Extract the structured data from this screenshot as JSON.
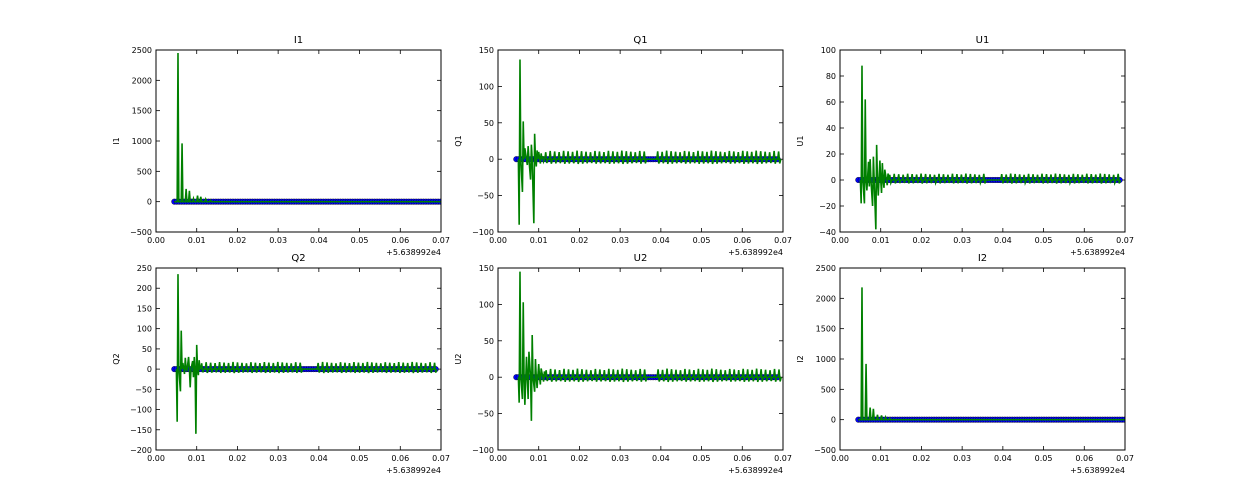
{
  "chart_data": [
    {
      "type": "line",
      "title": "I1",
      "ylabel": "I1",
      "xlim": [
        0.0,
        0.07
      ],
      "ylim": [
        -500,
        2500
      ],
      "xticks": [
        "0.00",
        "0.01",
        "0.02",
        "0.03",
        "0.04",
        "0.05",
        "0.06",
        "0.07"
      ],
      "yticks": [
        "−500",
        "0",
        "500",
        "1000",
        "1500",
        "2000",
        "2500"
      ],
      "x_offset_label": "+5.638992e4",
      "series": [
        {
          "color": "#0000ff",
          "marker": "circle",
          "x": [
            0.0045,
            0.005,
            0.006,
            0.007,
            0.008,
            0.009,
            0.01,
            0.011,
            0.012,
            0.013,
            0.014,
            0.015,
            0.02,
            0.025,
            0.03,
            0.036,
            0.0385,
            0.045,
            0.05,
            0.055,
            0.06,
            0.065,
            0.07
          ],
          "y": [
            0,
            2,
            1,
            0,
            1,
            0,
            2,
            1,
            0,
            1,
            0,
            0,
            1,
            0,
            0,
            0,
            0,
            0,
            0,
            0,
            0,
            0,
            0
          ]
        },
        {
          "color": "#008000",
          "marker": "none",
          "x": [
            0.0045,
            0.0052,
            0.0054,
            0.0056,
            0.0062,
            0.0064,
            0.0066,
            0.0072,
            0.0074,
            0.0076,
            0.008,
            0.0082,
            0.0084,
            0.009,
            0.0092,
            0.0094,
            0.01,
            0.0102,
            0.0104,
            0.0108,
            0.011,
            0.0112,
            0.012,
            0.0122,
            0.0124,
            0.0132,
            0.0134,
            0.0136,
            0.0145,
            0.02,
            0.025,
            0.03,
            0.036,
            0.0385,
            0.045,
            0.05,
            0.055,
            0.06,
            0.065,
            0.07
          ],
          "y": [
            0,
            0,
            2450,
            0,
            0,
            960,
            0,
            0,
            210,
            0,
            0,
            180,
            0,
            0,
            50,
            0,
            0,
            100,
            0,
            0,
            80,
            0,
            0,
            40,
            0,
            0,
            20,
            0,
            0,
            0,
            0,
            0,
            0,
            0,
            0,
            0,
            0,
            0,
            0,
            0
          ]
        }
      ]
    },
    {
      "type": "line",
      "title": "Q1",
      "ylabel": "Q1",
      "xlim": [
        0.0,
        0.07
      ],
      "ylim": [
        -100,
        150
      ],
      "xticks": [
        "0.00",
        "0.01",
        "0.02",
        "0.03",
        "0.04",
        "0.05",
        "0.06",
        "0.07"
      ],
      "yticks": [
        "−100",
        "−50",
        "0",
        "50",
        "100",
        "150"
      ],
      "x_offset_label": "+5.638992e4",
      "series": [
        {
          "color": "#0000ff",
          "marker": "circle",
          "x": [
            0.0045,
            0.01,
            0.015,
            0.02,
            0.025,
            0.03,
            0.035,
            0.037,
            0.0385,
            0.045,
            0.05,
            0.055,
            0.06,
            0.065,
            0.069
          ],
          "y": [
            0,
            0,
            0,
            0,
            0,
            0,
            0,
            0,
            0,
            0,
            0,
            0,
            0,
            0,
            0
          ]
        },
        {
          "color": "#008000",
          "marker": "none",
          "x": [
            0.005,
            0.0052,
            0.0054,
            0.0056,
            0.006,
            0.0062,
            0.0064,
            0.0066,
            0.0072,
            0.0074,
            0.0076,
            0.008,
            0.0082,
            0.0084,
            0.0088,
            0.009,
            0.0092,
            0.0094,
            0.0096,
            0.0098,
            0.01,
            0.0104,
            0.0106,
            0.0108,
            0.011,
            0.0112,
            0.0114
          ],
          "y": [
            0,
            -90,
            137,
            0,
            -45,
            52,
            0,
            15,
            -8,
            18,
            0,
            -28,
            20,
            0,
            -88,
            35,
            0,
            -10,
            12,
            0,
            10,
            -6,
            8,
            0,
            4,
            -3,
            0
          ]
        },
        {
          "color": "#008000",
          "marker": "none",
          "style": "comb",
          "x_start": 0.0115,
          "x_end": 0.069,
          "gap": [
            0.0365,
            0.0385
          ],
          "step": 0.0011,
          "amp": 12
        }
      ]
    },
    {
      "type": "line",
      "title": "U1",
      "ylabel": "U1",
      "xlim": [
        0.0,
        0.07
      ],
      "ylim": [
        -40,
        100
      ],
      "xticks": [
        "0.00",
        "0.01",
        "0.02",
        "0.03",
        "0.04",
        "0.05",
        "0.06",
        "0.07"
      ],
      "yticks": [
        "−40",
        "−20",
        "0",
        "20",
        "40",
        "60",
        "80",
        "100"
      ],
      "x_offset_label": "+5.638992e4",
      "series": [
        {
          "color": "#0000ff",
          "marker": "circle",
          "x": [
            0.0045,
            0.01,
            0.015,
            0.02,
            0.025,
            0.03,
            0.035,
            0.036,
            0.0385,
            0.045,
            0.05,
            0.055,
            0.06,
            0.065,
            0.069
          ],
          "y": [
            0,
            0,
            0,
            0,
            0,
            0,
            0,
            0,
            0,
            0,
            0,
            0,
            0,
            0,
            0
          ]
        },
        {
          "color": "#008000",
          "marker": "none",
          "x": [
            0.005,
            0.0052,
            0.0054,
            0.0056,
            0.006,
            0.0062,
            0.0064,
            0.0066,
            0.007,
            0.0072,
            0.0074,
            0.0076,
            0.008,
            0.0082,
            0.0084,
            0.0088,
            0.009,
            0.0092,
            0.0094,
            0.0098,
            0.01,
            0.0102,
            0.0104,
            0.0106,
            0.0108,
            0.011,
            0.0114,
            0.0116,
            0.0118,
            0.012
          ],
          "y": [
            0,
            -18,
            88,
            0,
            -18,
            62,
            0,
            -8,
            14,
            -5,
            16,
            0,
            -20,
            18,
            0,
            -38,
            27,
            0,
            -12,
            15,
            0,
            -10,
            13,
            0,
            -6,
            8,
            0,
            -4,
            5,
            0
          ]
        },
        {
          "color": "#008000",
          "marker": "none",
          "style": "comb",
          "x_start": 0.012,
          "x_end": 0.069,
          "gap": [
            0.036,
            0.0385
          ],
          "step": 0.0011,
          "amp": 5
        }
      ]
    },
    {
      "type": "line",
      "title": "Q2",
      "ylabel": "Q2",
      "xlim": [
        0.0,
        0.07
      ],
      "ylim": [
        -200,
        250
      ],
      "xticks": [
        "0.00",
        "0.01",
        "0.02",
        "0.03",
        "0.04",
        "0.05",
        "0.06",
        "0.07"
      ],
      "yticks": [
        "−200",
        "−150",
        "−100",
        "−50",
        "0",
        "50",
        "100",
        "150",
        "200",
        "250"
      ],
      "x_offset_label": "+5.638992e4",
      "series": [
        {
          "color": "#0000ff",
          "marker": "circle",
          "x": [
            0.0045,
            0.01,
            0.015,
            0.02,
            0.025,
            0.03,
            0.035,
            0.036,
            0.0385,
            0.045,
            0.05,
            0.055,
            0.06,
            0.065,
            0.069
          ],
          "y": [
            0,
            0,
            0,
            0,
            0,
            0,
            0,
            0,
            0,
            0,
            0,
            0,
            0,
            0,
            0
          ]
        },
        {
          "color": "#008000",
          "marker": "none",
          "x": [
            0.005,
            0.0052,
            0.0054,
            0.0056,
            0.006,
            0.0062,
            0.0064,
            0.0066,
            0.007,
            0.0072,
            0.0074,
            0.0076,
            0.008,
            0.0082,
            0.0084,
            0.0086,
            0.009,
            0.0092,
            0.0094,
            0.0096,
            0.0098,
            0.01,
            0.0102,
            0.0104,
            0.0106,
            0.0108,
            0.011
          ],
          "y": [
            0,
            -130,
            235,
            0,
            -55,
            95,
            0,
            15,
            -12,
            28,
            0,
            -5,
            30,
            0,
            -45,
            0,
            20,
            -20,
            30,
            0,
            -160,
            60,
            0,
            -15,
            22,
            0,
            0
          ]
        },
        {
          "color": "#008000",
          "marker": "none",
          "style": "comb",
          "x_start": 0.011,
          "x_end": 0.069,
          "gap": [
            0.036,
            0.0385
          ],
          "step": 0.0011,
          "amp": 18
        }
      ]
    },
    {
      "type": "line",
      "title": "U2",
      "ylabel": "U2",
      "xlim": [
        0.0,
        0.07
      ],
      "ylim": [
        -100,
        150
      ],
      "xticks": [
        "0.00",
        "0.01",
        "0.02",
        "0.03",
        "0.04",
        "0.05",
        "0.06",
        "0.07"
      ],
      "yticks": [
        "−100",
        "−50",
        "0",
        "50",
        "100",
        "150"
      ],
      "x_offset_label": "+5.638992e4",
      "series": [
        {
          "color": "#0000ff",
          "marker": "circle",
          "x": [
            0.0045,
            0.01,
            0.015,
            0.02,
            0.025,
            0.03,
            0.035,
            0.036,
            0.0385,
            0.045,
            0.05,
            0.055,
            0.06,
            0.065,
            0.069
          ],
          "y": [
            0,
            0,
            0,
            0,
            0,
            0,
            0,
            0,
            0,
            0,
            0,
            0,
            0,
            0,
            0
          ]
        },
        {
          "color": "#008000",
          "marker": "none",
          "x": [
            0.005,
            0.0052,
            0.0054,
            0.0056,
            0.006,
            0.0062,
            0.0064,
            0.0066,
            0.007,
            0.0072,
            0.0074,
            0.0076,
            0.008,
            0.0082,
            0.0084,
            0.0086,
            0.009,
            0.0092,
            0.0094,
            0.0096,
            0.01,
            0.0102,
            0.0104,
            0.0106,
            0.011,
            0.0112,
            0.0114,
            0.0116
          ],
          "y": [
            0,
            -35,
            145,
            0,
            -30,
            103,
            0,
            -38,
            28,
            0,
            -30,
            35,
            0,
            -60,
            58,
            0,
            -20,
            25,
            0,
            -15,
            18,
            0,
            -10,
            12,
            0,
            -6,
            8,
            0
          ]
        },
        {
          "color": "#008000",
          "marker": "none",
          "style": "comb",
          "x_start": 0.0116,
          "x_end": 0.069,
          "gap": [
            0.036,
            0.0385
          ],
          "step": 0.0011,
          "amp": 12
        }
      ]
    },
    {
      "type": "line",
      "title": "I2",
      "ylabel": "I2",
      "xlim": [
        0.0,
        0.07
      ],
      "ylim": [
        -500,
        2500
      ],
      "xticks": [
        "0.00",
        "0.01",
        "0.02",
        "0.03",
        "0.04",
        "0.05",
        "0.06",
        "0.07"
      ],
      "yticks": [
        "−500",
        "0",
        "500",
        "1000",
        "1500",
        "2000",
        "2500"
      ],
      "x_offset_label": "+5.638992e4",
      "series": [
        {
          "color": "#0000ff",
          "marker": "circle",
          "x": [
            0.0045,
            0.01,
            0.015,
            0.02,
            0.03,
            0.036,
            0.0385,
            0.045,
            0.05,
            0.06,
            0.07
          ],
          "y": [
            0,
            0,
            0,
            0,
            0,
            0,
            0,
            0,
            0,
            0,
            0
          ]
        },
        {
          "color": "#008000",
          "marker": "none",
          "x": [
            0.0045,
            0.0052,
            0.0054,
            0.0056,
            0.0062,
            0.0064,
            0.0066,
            0.0072,
            0.0074,
            0.0076,
            0.008,
            0.0082,
            0.0084,
            0.009,
            0.0092,
            0.0094,
            0.01,
            0.0102,
            0.0104,
            0.011,
            0.0112,
            0.0114,
            0.012,
            0.0122,
            0.0124,
            0.014,
            0.02,
            0.03,
            0.036,
            0.0385,
            0.05,
            0.06,
            0.07
          ],
          "y": [
            0,
            0,
            2180,
            0,
            0,
            920,
            0,
            0,
            200,
            0,
            0,
            180,
            0,
            0,
            80,
            0,
            0,
            70,
            0,
            0,
            40,
            0,
            0,
            20,
            0,
            0,
            0,
            0,
            0,
            0,
            0,
            0,
            0
          ]
        }
      ]
    }
  ]
}
